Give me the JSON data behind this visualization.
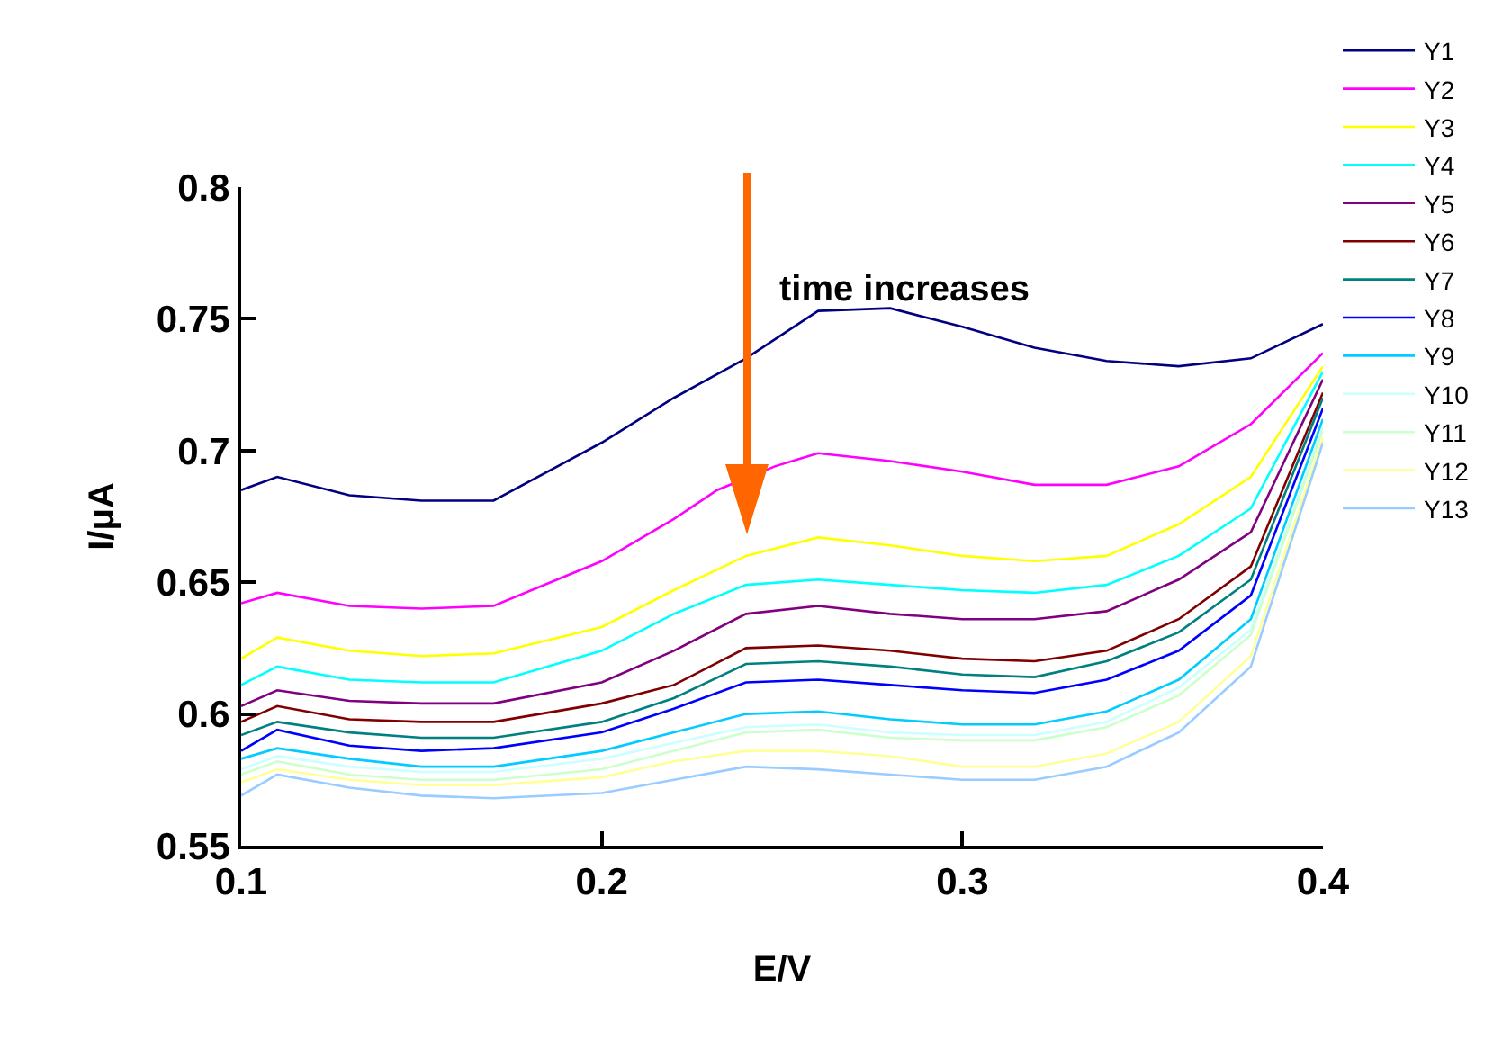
{
  "chart_data": {
    "type": "line",
    "xlabel": "E/V",
    "ylabel": "I/μA",
    "annotations": [
      "time increases"
    ],
    "x": [
      0.1,
      0.11,
      0.13,
      0.15,
      0.17,
      0.2,
      0.22,
      0.24,
      0.26,
      0.28,
      0.3,
      0.32,
      0.34,
      0.36,
      0.38,
      0.4
    ],
    "xlim": [
      0.1,
      0.4
    ],
    "xticks": [
      0.1,
      0.2,
      0.3,
      0.4
    ],
    "ylim": [
      0.55,
      0.8
    ],
    "yticks": [
      0.55,
      0.6,
      0.65,
      0.7,
      0.75,
      0.8
    ],
    "grid": false,
    "legend": "top right",
    "marker": "none",
    "line_style": "solid",
    "series": [
      {
        "name": "Y1",
        "color": "#000080",
        "values": [
          0.685,
          0.69,
          0.683,
          0.681,
          0.681,
          0.703,
          0.72,
          0.735,
          0.753,
          0.754,
          0.747,
          0.739,
          0.734,
          0.732,
          0.735,
          0.748
        ]
      },
      {
        "name": "Y2",
        "color": "#ff00ff",
        "x": [
          0.1,
          0.11,
          0.13,
          0.15,
          0.17,
          0.2,
          0.22,
          0.232,
          0.248,
          0.26,
          0.28,
          0.3,
          0.32,
          0.34,
          0.36,
          0.38,
          0.4
        ],
        "values": [
          0.642,
          0.646,
          0.641,
          0.64,
          0.641,
          0.658,
          0.674,
          0.685,
          0.694,
          0.699,
          0.696,
          0.692,
          0.687,
          0.687,
          0.694,
          0.71,
          0.737
        ]
      },
      {
        "name": "Y3",
        "color": "#ffff00",
        "values": [
          0.621,
          0.629,
          0.624,
          0.622,
          0.623,
          0.633,
          0.647,
          0.66,
          0.667,
          0.664,
          0.66,
          0.658,
          0.66,
          0.672,
          0.69,
          0.732
        ]
      },
      {
        "name": "Y4",
        "color": "#00ffff",
        "values": [
          0.611,
          0.618,
          0.613,
          0.612,
          0.612,
          0.624,
          0.638,
          0.649,
          0.651,
          0.649,
          0.647,
          0.646,
          0.649,
          0.66,
          0.678,
          0.73
        ]
      },
      {
        "name": "Y5",
        "color": "#800080",
        "values": [
          0.603,
          0.609,
          0.605,
          0.604,
          0.604,
          0.612,
          0.624,
          0.638,
          0.641,
          0.638,
          0.636,
          0.636,
          0.639,
          0.651,
          0.669,
          0.727
        ]
      },
      {
        "name": "Y6",
        "color": "#800000",
        "values": [
          0.597,
          0.603,
          0.598,
          0.597,
          0.597,
          0.604,
          0.611,
          0.625,
          0.626,
          0.624,
          0.621,
          0.62,
          0.624,
          0.636,
          0.656,
          0.722
        ]
      },
      {
        "name": "Y7",
        "color": "#008080",
        "values": [
          0.592,
          0.597,
          0.593,
          0.591,
          0.591,
          0.597,
          0.606,
          0.619,
          0.62,
          0.618,
          0.615,
          0.614,
          0.62,
          0.631,
          0.651,
          0.72
        ]
      },
      {
        "name": "Y8",
        "color": "#0000ff",
        "values": [
          0.586,
          0.594,
          0.588,
          0.586,
          0.587,
          0.593,
          0.602,
          0.612,
          0.613,
          0.611,
          0.609,
          0.608,
          0.613,
          0.624,
          0.645,
          0.716
        ]
      },
      {
        "name": "Y9",
        "color": "#00ccff",
        "values": [
          0.583,
          0.587,
          0.583,
          0.58,
          0.58,
          0.586,
          0.593,
          0.6,
          0.601,
          0.598,
          0.596,
          0.596,
          0.601,
          0.613,
          0.636,
          0.712
        ]
      },
      {
        "name": "Y10",
        "color": "#ccffff",
        "values": [
          0.579,
          0.584,
          0.58,
          0.578,
          0.578,
          0.583,
          0.589,
          0.595,
          0.596,
          0.593,
          0.592,
          0.592,
          0.597,
          0.61,
          0.632,
          0.709
        ]
      },
      {
        "name": "Y11",
        "color": "#ccffcc",
        "values": [
          0.577,
          0.582,
          0.577,
          0.575,
          0.575,
          0.579,
          0.586,
          0.593,
          0.594,
          0.591,
          0.59,
          0.59,
          0.595,
          0.607,
          0.63,
          0.708
        ]
      },
      {
        "name": "Y12",
        "color": "#ffff99",
        "values": [
          0.574,
          0.579,
          0.575,
          0.573,
          0.573,
          0.576,
          0.582,
          0.586,
          0.586,
          0.584,
          0.58,
          0.58,
          0.585,
          0.597,
          0.622,
          0.705
        ]
      },
      {
        "name": "Y13",
        "color": "#99ccff",
        "values": [
          0.569,
          0.577,
          0.572,
          0.569,
          0.568,
          0.57,
          0.575,
          0.58,
          0.579,
          0.577,
          0.575,
          0.575,
          0.58,
          0.593,
          0.618,
          0.703
        ]
      }
    ]
  }
}
